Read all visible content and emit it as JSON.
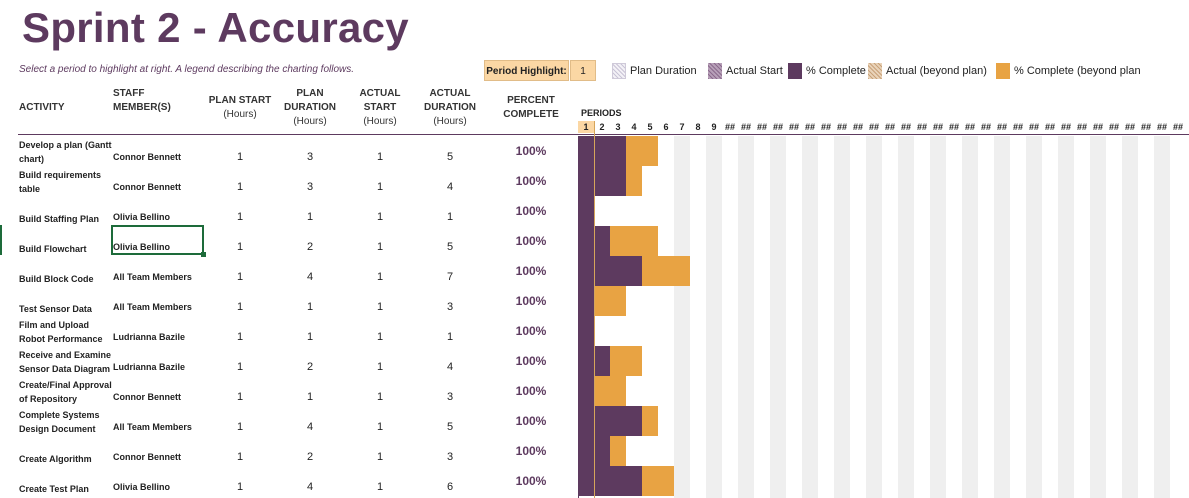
{
  "title": "Sprint 2 - Accuracy",
  "subtitle": "Select a period to highlight at right.  A legend describing the charting follows.",
  "period_highlight": {
    "label": "Period Highlight:",
    "value": "1"
  },
  "legend": [
    {
      "label": "Plan Duration",
      "pattern": "plan"
    },
    {
      "label": "Actual Start",
      "pattern": "actual"
    },
    {
      "label": "% Complete",
      "pattern": "complete"
    },
    {
      "label": "Actual (beyond plan)",
      "pattern": "beyond"
    },
    {
      "label": "% Complete (beyond plan",
      "pattern": "complete-beyond"
    }
  ],
  "columns": {
    "activity": "ACTIVITY",
    "staff": [
      "STAFF",
      "MEMBER(S)"
    ],
    "plan_start": [
      "PLAN START",
      "(Hours)"
    ],
    "plan_duration": [
      "PLAN",
      "DURATION",
      "(Hours)"
    ],
    "actual_start": [
      "ACTUAL",
      "START",
      "(Hours)"
    ],
    "actual_duration": [
      "ACTUAL",
      "DURATION",
      "(Hours)"
    ],
    "percent_complete": [
      "PERCENT",
      "COMPLETE"
    ],
    "periods": "PERIODS"
  },
  "period_labels": [
    "1",
    "2",
    "3",
    "4",
    "5",
    "6",
    "7",
    "8",
    "9",
    "##",
    "##",
    "##",
    "##",
    "##",
    "##",
    "##",
    "##",
    "##",
    "##",
    "##",
    "##",
    "##",
    "##",
    "##",
    "##",
    "##",
    "##",
    "##",
    "##",
    "##",
    "##",
    "##",
    "##",
    "##",
    "##",
    "##",
    "##",
    "##"
  ],
  "colors": {
    "accent": "#5d3a5f",
    "complete": "#5d3a5f",
    "beyond": "#e8a343",
    "highlight": "#fbd7a4",
    "stripe": "#efefef"
  },
  "tasks": [
    {
      "activity": "Develop a plan (Gantt chart)",
      "staff": "Connor Bennett",
      "plan_start": "1",
      "plan_duration": "3",
      "actual_start": "1",
      "actual_duration": "5",
      "percent": "100%"
    },
    {
      "activity": "Build requirements table",
      "staff": "Connor Bennett",
      "plan_start": "1",
      "plan_duration": "3",
      "actual_start": "1",
      "actual_duration": "4",
      "percent": "100%"
    },
    {
      "activity": "Build Staffing Plan",
      "staff": "Olivia Bellino",
      "plan_start": "1",
      "plan_duration": "1",
      "actual_start": "1",
      "actual_duration": "1",
      "percent": "100%"
    },
    {
      "activity": "Build Flowchart",
      "staff": "Olivia Bellino",
      "plan_start": "1",
      "plan_duration": "2",
      "actual_start": "1",
      "actual_duration": "5",
      "percent": "100%"
    },
    {
      "activity": "Build Block Code",
      "staff": "All Team Members",
      "plan_start": "1",
      "plan_duration": "4",
      "actual_start": "1",
      "actual_duration": "7",
      "percent": "100%"
    },
    {
      "activity": "Test Sensor Data",
      "staff": "All Team Members",
      "plan_start": "1",
      "plan_duration": "1",
      "actual_start": "1",
      "actual_duration": "3",
      "percent": "100%"
    },
    {
      "activity": "Film and Upload Robot Performance",
      "staff": "Ludrianna Bazile",
      "plan_start": "1",
      "plan_duration": "1",
      "actual_start": "1",
      "actual_duration": "1",
      "percent": "100%"
    },
    {
      "activity": "Receive and Examine Sensor Data Diagram",
      "staff": "Ludrianna Bazile",
      "plan_start": "1",
      "plan_duration": "2",
      "actual_start": "1",
      "actual_duration": "4",
      "percent": "100%"
    },
    {
      "activity": "Create/Final Approval of Repository",
      "staff": "Connor Bennett",
      "plan_start": "1",
      "plan_duration": "1",
      "actual_start": "1",
      "actual_duration": "3",
      "percent": "100%"
    },
    {
      "activity": "Complete Systems Design Document",
      "staff": "All Team Members",
      "plan_start": "1",
      "plan_duration": "4",
      "actual_start": "1",
      "actual_duration": "5",
      "percent": "100%"
    },
    {
      "activity": "Create Algorithm",
      "staff": "Connor Bennett",
      "plan_start": "1",
      "plan_duration": "2",
      "actual_start": "1",
      "actual_duration": "3",
      "percent": "100%"
    },
    {
      "activity": "Create Test Plan",
      "staff": "Olivia Bellino",
      "plan_start": "1",
      "plan_duration": "4",
      "actual_start": "1",
      "actual_duration": "6",
      "percent": "100%"
    }
  ]
}
